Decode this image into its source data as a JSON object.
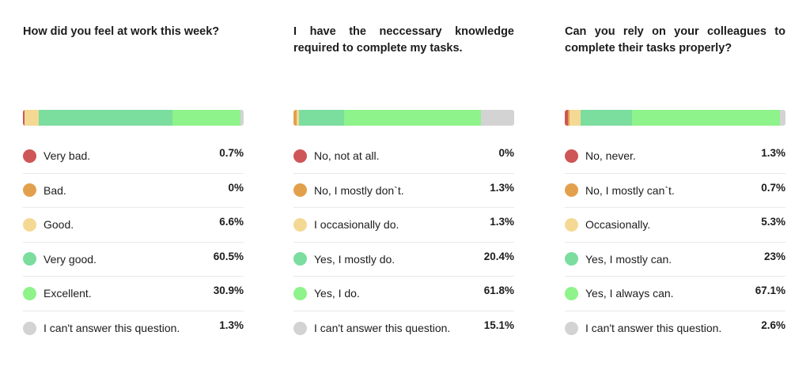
{
  "colors": {
    "very_bad": "#cf5656",
    "bad": "#e3a04c",
    "good": "#f4d994",
    "very_good": "#7bdd9e",
    "excellent": "#8df38a",
    "cant_answer": "#d3d3d3"
  },
  "chart_data": [
    {
      "type": "bar",
      "orientation": "horizontal-stacked",
      "title": "How did you feel at work this week?",
      "categories": [
        "Very bad.",
        "Bad.",
        "Good.",
        "Very good.",
        "Excellent.",
        "I can't answer this question."
      ],
      "values": [
        0.7,
        0,
        6.6,
        60.5,
        30.9,
        1.3
      ],
      "labels": [
        "0.7%",
        "0%",
        "6.6%",
        "60.5%",
        "30.9%",
        "1.3%"
      ],
      "colors": [
        "#cf5656",
        "#e3a04c",
        "#f4d994",
        "#7bdd9e",
        "#8df38a",
        "#d3d3d3"
      ]
    },
    {
      "type": "bar",
      "orientation": "horizontal-stacked",
      "title": "I have the neccessary knowledge required to complete my tasks.",
      "categories": [
        "No, not at all.",
        "No, I mostly don`t.",
        "I occasionally do.",
        "Yes, I mostly do.",
        "Yes, I do.",
        "I can't answer this question."
      ],
      "values": [
        0,
        1.3,
        1.3,
        20.4,
        61.8,
        15.1
      ],
      "labels": [
        "0%",
        "1.3%",
        "1.3%",
        "20.4%",
        "61.8%",
        "15.1%"
      ],
      "colors": [
        "#cf5656",
        "#e3a04c",
        "#f4d994",
        "#7bdd9e",
        "#8df38a",
        "#d3d3d3"
      ]
    },
    {
      "type": "bar",
      "orientation": "horizontal-stacked",
      "title": "Can you rely on your colleagues to complete their tasks properly?",
      "categories": [
        "No, never.",
        "No, I mostly can`t.",
        "Occasionally.",
        "Yes, I mostly can.",
        "Yes, I always can.",
        "I can't answer this question."
      ],
      "values": [
        1.3,
        0.7,
        5.3,
        23,
        67.1,
        2.6
      ],
      "labels": [
        "1.3%",
        "0.7%",
        "5.3%",
        "23%",
        "67.1%",
        "2.6%"
      ],
      "colors": [
        "#cf5656",
        "#e3a04c",
        "#f4d994",
        "#7bdd9e",
        "#8df38a",
        "#d3d3d3"
      ]
    }
  ]
}
